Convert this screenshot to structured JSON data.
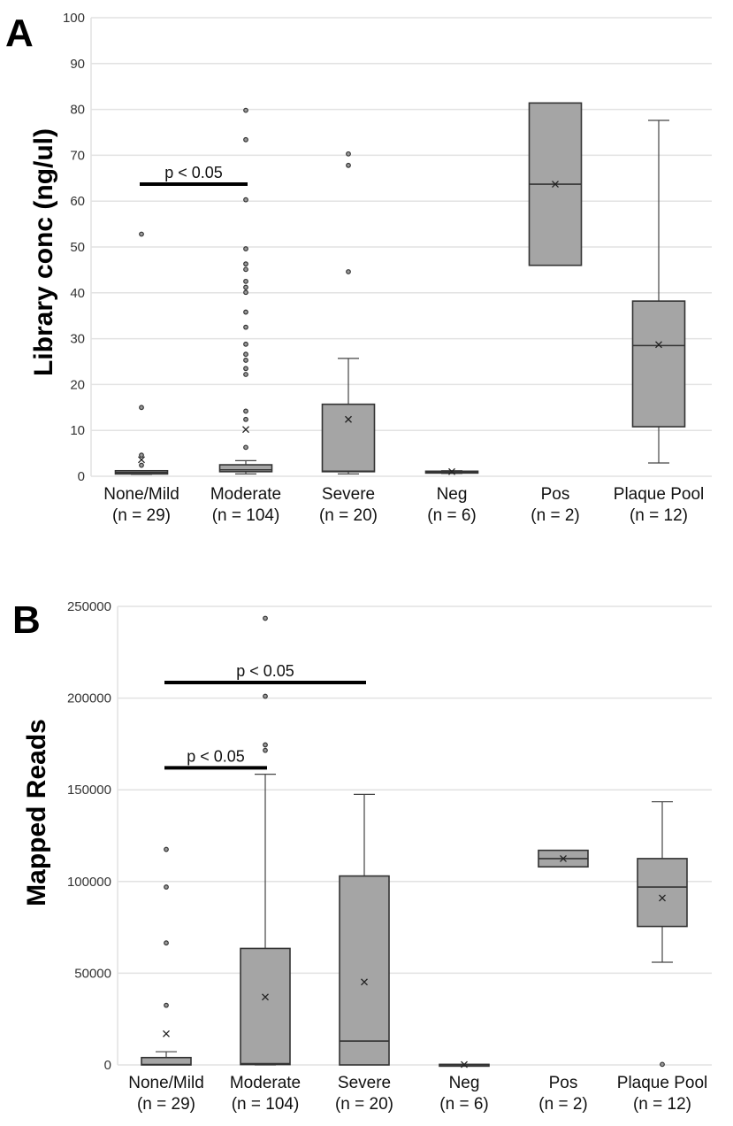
{
  "chart_data": [
    {
      "type": "box",
      "panel": "A",
      "title": "",
      "xlabel": "",
      "ylabel": "Library conc (ng/ul)",
      "ylim": [
        0,
        100
      ],
      "yticks": [
        0,
        10,
        20,
        30,
        40,
        50,
        60,
        70,
        80,
        90,
        100
      ],
      "grid": true,
      "categories": [
        "None/Mild",
        "Moderate",
        "Severe",
        "Neg",
        "Pos",
        "Plaque Pool"
      ],
      "category_n": [
        "(n = 29)",
        "(n = 104)",
        "(n = 20)",
        "(n = 6)",
        "(n = 2)",
        "(n = 12)"
      ],
      "series": [
        {
          "name": "None/Mild",
          "min": 0.4,
          "q1": 0.5,
          "median": 0.8,
          "q3": 1.2,
          "max": 1.2,
          "mean": 3.6,
          "outliers": [
            2.4,
            4.6,
            15.0,
            52.8
          ]
        },
        {
          "name": "Moderate",
          "min": 0.5,
          "q1": 1.0,
          "median": 1.4,
          "q3": 2.5,
          "max": 3.4,
          "mean": 10.2,
          "outliers": [
            6.3,
            12.4,
            14.2,
            22.2,
            23.5,
            25.3,
            26.6,
            28.8,
            32.5,
            35.8,
            40.1,
            41.2,
            42.5,
            45.1,
            46.3,
            49.6,
            60.3,
            73.4,
            79.8
          ]
        },
        {
          "name": "Severe",
          "min": 0.5,
          "q1": 1.0,
          "median": 1.1,
          "q3": 15.7,
          "max": 25.7,
          "mean": 12.4,
          "outliers": [
            44.6,
            67.8,
            70.3
          ]
        },
        {
          "name": "Neg",
          "min": 0.6,
          "q1": 0.7,
          "median": 0.9,
          "q3": 1.1,
          "max": 1.2,
          "mean": 1.0,
          "outliers": []
        },
        {
          "name": "Pos",
          "min": 46.0,
          "q1": 46.0,
          "median": 63.7,
          "q3": 81.4,
          "max": 81.4,
          "mean": 63.7,
          "outliers": []
        },
        {
          "name": "Plaque Pool",
          "min": 2.9,
          "q1": 10.8,
          "median": 28.5,
          "q3": 38.2,
          "max": 77.6,
          "mean": 28.7,
          "outliers": []
        }
      ],
      "annotations": [
        {
          "text": "p < 0.05",
          "from": "None/Mild",
          "to": "Moderate",
          "y": 63.7
        }
      ]
    },
    {
      "type": "box",
      "panel": "B",
      "title": "",
      "xlabel": "",
      "ylabel": "Mapped Reads",
      "ylim": [
        0,
        250000
      ],
      "yticks": [
        0,
        50000,
        100000,
        150000,
        200000,
        250000
      ],
      "grid": true,
      "categories": [
        "None/Mild",
        "Moderate",
        "Severe",
        "Neg",
        "Pos",
        "Plaque Pool"
      ],
      "category_n": [
        "(n = 29)",
        "(n = 104)",
        "(n = 20)",
        "(n = 6)",
        "(n = 2)",
        "(n = 12)"
      ],
      "series": [
        {
          "name": "None/Mild",
          "min": 0,
          "q1": 0,
          "median": 200,
          "q3": 4000,
          "max": 7200,
          "mean": 17000,
          "outliers": [
            32500,
            66500,
            97000,
            117500
          ]
        },
        {
          "name": "Moderate",
          "min": 0,
          "q1": 200,
          "median": 700,
          "q3": 63500,
          "max": 158500,
          "mean": 37000,
          "outliers": [
            171500,
            174500,
            201000,
            243500
          ]
        },
        {
          "name": "Severe",
          "min": 0,
          "q1": 0,
          "median": 13000,
          "q3": 103000,
          "max": 147500,
          "mean": 45200,
          "outliers": []
        },
        {
          "name": "Neg",
          "min": 0,
          "q1": 0,
          "median": 150,
          "q3": 300,
          "max": 300,
          "mean": 200,
          "outliers": []
        },
        {
          "name": "Pos",
          "min": 108000,
          "q1": 108000,
          "median": 112500,
          "q3": 117000,
          "max": 117000,
          "mean": 112500,
          "outliers": []
        },
        {
          "name": "Plaque Pool",
          "min": 56000,
          "q1": 75500,
          "median": 97000,
          "q3": 112500,
          "max": 143500,
          "mean": 91000,
          "outliers": [
            300
          ]
        }
      ],
      "annotations": [
        {
          "text": "p < 0.05",
          "from": "None/Mild",
          "to": "Severe",
          "y": 208500
        },
        {
          "text": "p < 0.05",
          "from": "None/Mild",
          "to": "Moderate",
          "y": 162000
        }
      ]
    }
  ],
  "panels": {
    "a": {
      "letter": "A",
      "ylabel": "Library conc (ng/ul)"
    },
    "b": {
      "letter": "B",
      "ylabel": "Mapped Reads"
    }
  }
}
